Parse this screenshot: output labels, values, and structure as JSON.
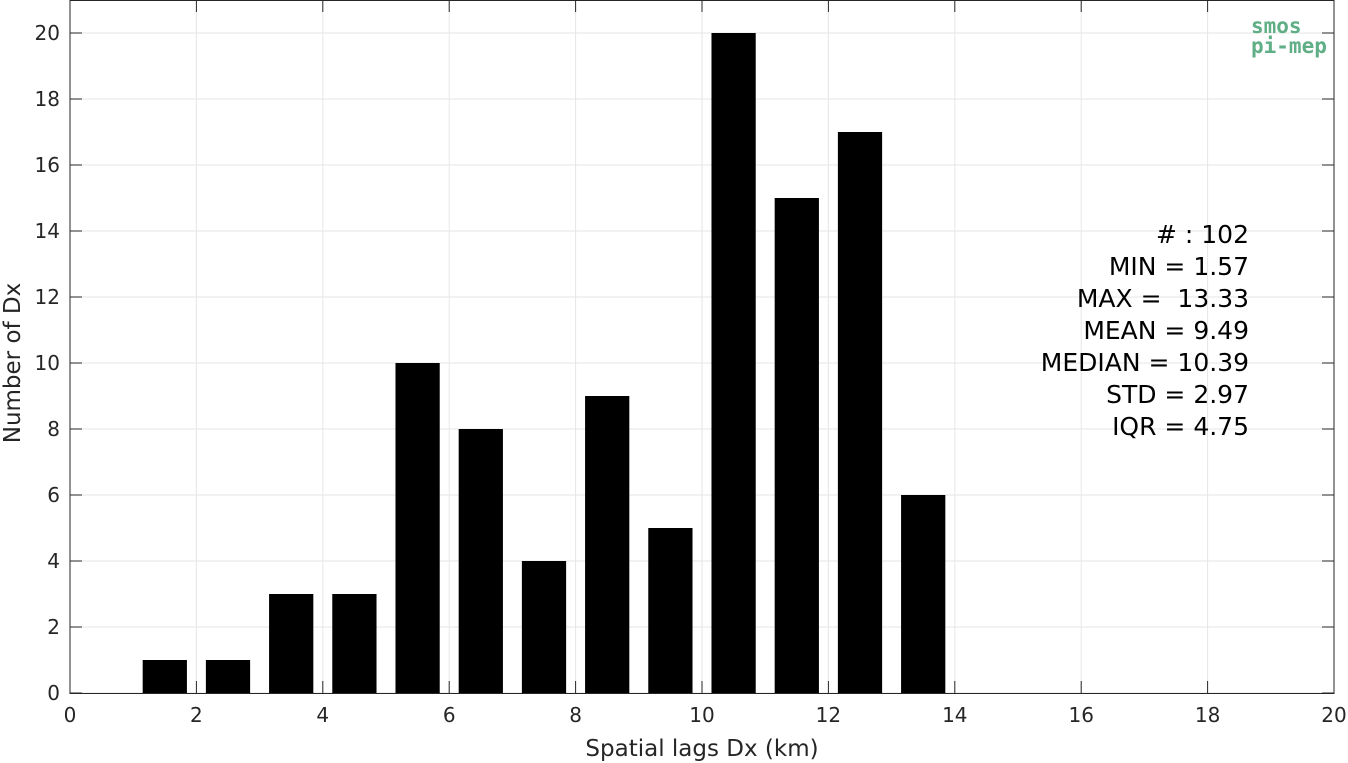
{
  "chart_data": {
    "type": "bar",
    "xlabel": "Spatial lags Dx (km)",
    "ylabel": "Number of Dx",
    "xlim": [
      0,
      20
    ],
    "ylim": [
      0,
      21
    ],
    "xticks": [
      0,
      2,
      4,
      6,
      8,
      10,
      12,
      14,
      16,
      18,
      20
    ],
    "yticks": [
      0,
      2,
      4,
      6,
      8,
      10,
      12,
      14,
      16,
      18,
      20
    ],
    "grid": true,
    "bar_color": "#000000",
    "bin_width": 1,
    "bins": [
      {
        "center": 1.5,
        "value": 1
      },
      {
        "center": 2.5,
        "value": 1
      },
      {
        "center": 3.5,
        "value": 3
      },
      {
        "center": 4.5,
        "value": 3
      },
      {
        "center": 5.5,
        "value": 10
      },
      {
        "center": 6.5,
        "value": 8
      },
      {
        "center": 7.5,
        "value": 4
      },
      {
        "center": 8.5,
        "value": 9
      },
      {
        "center": 9.5,
        "value": 5
      },
      {
        "center": 10.5,
        "value": 20
      },
      {
        "center": 11.5,
        "value": 15
      },
      {
        "center": 12.5,
        "value": 17
      },
      {
        "center": 13.5,
        "value": 6
      }
    ],
    "annotations": [
      "# : 102",
      "MIN = 1.57",
      "MAX =  13.33",
      "MEAN = 9.49",
      "MEDIAN = 10.39",
      "STD = 2.97",
      "IQR = 4.75"
    ]
  },
  "logo": {
    "line1": "smos",
    "line2": "pi-mep",
    "color": "#5fae85"
  }
}
